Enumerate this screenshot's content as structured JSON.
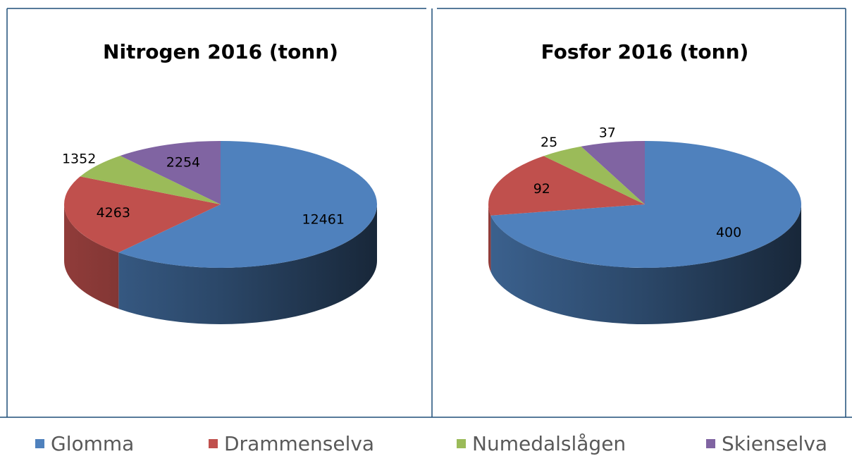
{
  "chart_data": [
    {
      "type": "pie",
      "title": "Nitrogen 2016 (tonn)",
      "categories": [
        "Glomma",
        "Drammenselva",
        "Numedalslågen",
        "Skienselva"
      ],
      "values": [
        12461,
        4263,
        1352,
        2254
      ],
      "colors": [
        "#4f81bd",
        "#c0504d",
        "#9bbb59",
        "#8064a2"
      ]
    },
    {
      "type": "pie",
      "title": "Fosfor 2016 (tonn)",
      "categories": [
        "Glomma",
        "Drammenselva",
        "Numedalslågen",
        "Skienselva"
      ],
      "values": [
        400,
        92,
        25,
        37
      ],
      "colors": [
        "#4f81bd",
        "#c0504d",
        "#9bbb59",
        "#8064a2"
      ]
    }
  ]
}
